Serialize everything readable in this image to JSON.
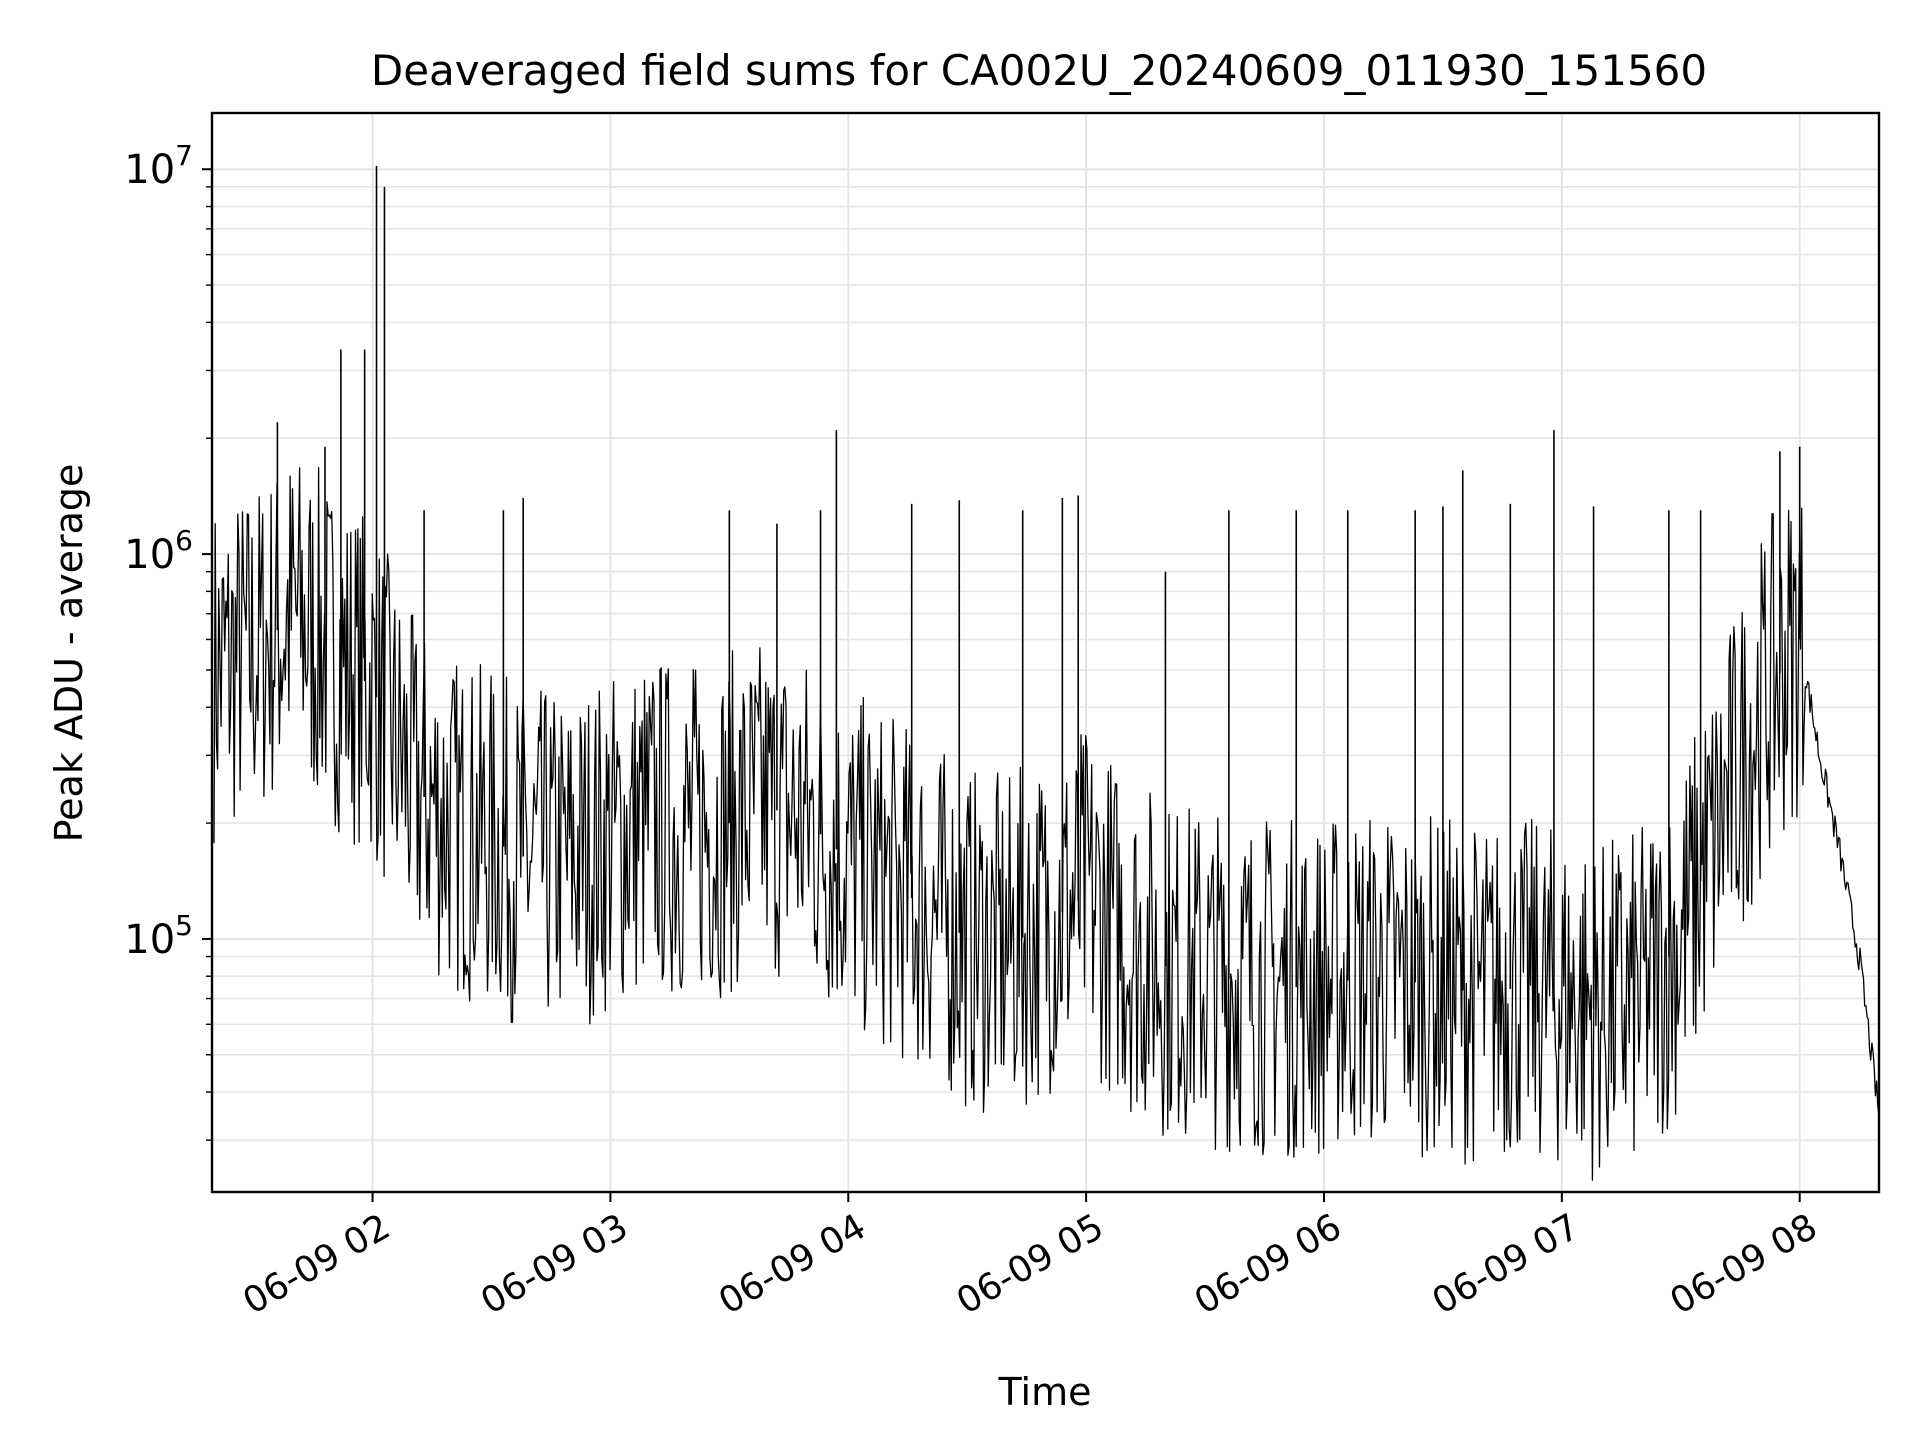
{
  "chart_data": {
    "type": "line",
    "title": "Deaveraged field sums for CA002U_20240609_011930_151560",
    "xlabel": "Time",
    "ylabel": "Peak ADU - average",
    "yscale": "log",
    "xlim": [
      "2024-06-09 01:19:30",
      "2024-06-09 08:20:00"
    ],
    "ylim": [
      22000,
      14000000
    ],
    "grid": true,
    "x_ticks": [
      {
        "t": "2024-06-09 02:00",
        "label": "06-09 02"
      },
      {
        "t": "2024-06-09 03:00",
        "label": "06-09 03"
      },
      {
        "t": "2024-06-09 04:00",
        "label": "06-09 04"
      },
      {
        "t": "2024-06-09 05:00",
        "label": "06-09 05"
      },
      {
        "t": "2024-06-09 06:00",
        "label": "06-09 06"
      },
      {
        "t": "2024-06-09 07:00",
        "label": "06-09 07"
      },
      {
        "t": "2024-06-09 08:00",
        "label": "06-09 08"
      }
    ],
    "y_ticks": [
      {
        "value": 100000,
        "base": "10",
        "exp": "5"
      },
      {
        "value": 1000000,
        "base": "10",
        "exp": "6"
      },
      {
        "value": 10000000,
        "base": "10",
        "exp": "7"
      }
    ],
    "series": [
      {
        "color": "#000000",
        "x": [
          "2024-06-09 01:20",
          "2024-06-09 01:30",
          "2024-06-09 01:40",
          "2024-06-09 01:50",
          "2024-06-09 02:00",
          "2024-06-09 02:10",
          "2024-06-09 02:20",
          "2024-06-09 02:30",
          "2024-06-09 02:40",
          "2024-06-09 02:50",
          "2024-06-09 03:00",
          "2024-06-09 03:10",
          "2024-06-09 03:20",
          "2024-06-09 03:30",
          "2024-06-09 03:40",
          "2024-06-09 03:50",
          "2024-06-09 04:00",
          "2024-06-09 04:10",
          "2024-06-09 04:20",
          "2024-06-09 04:30",
          "2024-06-09 04:40",
          "2024-06-09 04:50",
          "2024-06-09 05:00",
          "2024-06-09 05:10",
          "2024-06-09 05:20",
          "2024-06-09 05:30",
          "2024-06-09 05:40",
          "2024-06-09 05:50",
          "2024-06-09 06:00",
          "2024-06-09 06:10",
          "2024-06-09 06:20",
          "2024-06-09 06:30",
          "2024-06-09 06:40",
          "2024-06-09 06:50",
          "2024-06-09 07:00",
          "2024-06-09 07:10",
          "2024-06-09 07:20",
          "2024-06-09 07:30",
          "2024-06-09 07:40",
          "2024-06-09 07:50",
          "2024-06-09 08:00",
          "2024-06-09 08:05",
          "2024-06-09 08:10",
          "2024-06-09 08:15",
          "2024-06-09 08:20"
        ],
        "y": [
          500000,
          550000,
          700000,
          550000,
          450000,
          250000,
          200000,
          180000,
          160000,
          160000,
          180000,
          200000,
          190000,
          200000,
          220000,
          200000,
          160000,
          140000,
          120000,
          100000,
          95000,
          110000,
          130000,
          100000,
          85000,
          80000,
          78000,
          75000,
          75000,
          80000,
          78000,
          75000,
          72000,
          75000,
          70000,
          65000,
          70000,
          100000,
          200000,
          400000,
          600000,
          300000,
          170000,
          90000,
          35000
        ]
      }
    ],
    "spikes": [
      {
        "t": "2024-06-09 01:36",
        "y": 2200000
      },
      {
        "t": "2024-06-09 01:48",
        "y": 1900000
      },
      {
        "t": "2024-06-09 01:52",
        "y": 3400000
      },
      {
        "t": "2024-06-09 01:58",
        "y": 3400000
      },
      {
        "t": "2024-06-09 02:01",
        "y": 10200000
      },
      {
        "t": "2024-06-09 02:03",
        "y": 9000000
      },
      {
        "t": "2024-06-09 02:13",
        "y": 1300000
      },
      {
        "t": "2024-06-09 02:33",
        "y": 1300000
      },
      {
        "t": "2024-06-09 02:38",
        "y": 1400000
      },
      {
        "t": "2024-06-09 03:30",
        "y": 1300000
      },
      {
        "t": "2024-06-09 03:42",
        "y": 1200000
      },
      {
        "t": "2024-06-09 03:53",
        "y": 1300000
      },
      {
        "t": "2024-06-09 03:57",
        "y": 2100000
      },
      {
        "t": "2024-06-09 04:16",
        "y": 1350000
      },
      {
        "t": "2024-06-09 04:28",
        "y": 1380000
      },
      {
        "t": "2024-06-09 04:44",
        "y": 1300000
      },
      {
        "t": "2024-06-09 04:54",
        "y": 1400000
      },
      {
        "t": "2024-06-09 04:58",
        "y": 1420000
      },
      {
        "t": "2024-06-09 05:20",
        "y": 900000
      },
      {
        "t": "2024-06-09 05:36",
        "y": 1300000
      },
      {
        "t": "2024-06-09 05:53",
        "y": 1300000
      },
      {
        "t": "2024-06-09 06:06",
        "y": 1300000
      },
      {
        "t": "2024-06-09 06:23",
        "y": 1300000
      },
      {
        "t": "2024-06-09 06:30",
        "y": 1330000
      },
      {
        "t": "2024-06-09 06:35",
        "y": 1650000
      },
      {
        "t": "2024-06-09 06:47",
        "y": 1350000
      },
      {
        "t": "2024-06-09 06:58",
        "y": 2100000
      },
      {
        "t": "2024-06-09 07:08",
        "y": 1330000
      },
      {
        "t": "2024-06-09 07:27",
        "y": 1300000
      },
      {
        "t": "2024-06-09 07:35",
        "y": 1300000
      },
      {
        "t": "2024-06-09 07:55",
        "y": 1850000
      },
      {
        "t": "2024-06-09 08:00",
        "y": 1900000
      }
    ]
  }
}
